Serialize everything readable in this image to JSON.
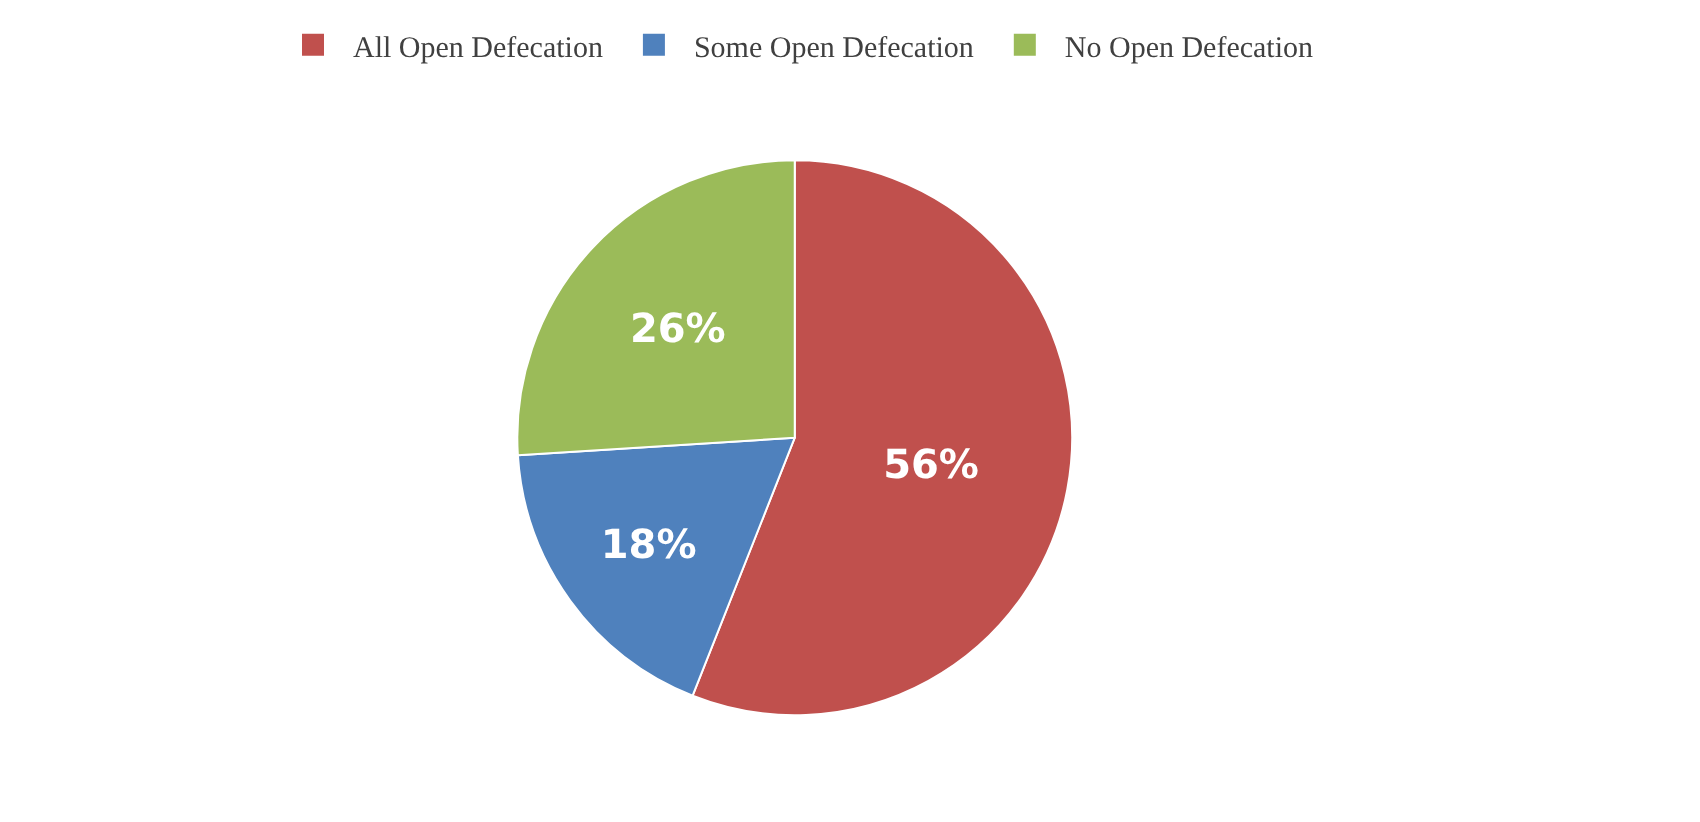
{
  "chart_data": {
    "type": "pie",
    "categories": [
      "All Open Defecation",
      "Some Open Defecation",
      "No Open Defecation"
    ],
    "values": [
      56,
      18,
      26
    ],
    "value_labels": [
      "56%",
      "18%",
      "26%"
    ],
    "colors": [
      "#c0504d",
      "#4f81bd",
      "#9bbb59"
    ],
    "legend": "top"
  }
}
